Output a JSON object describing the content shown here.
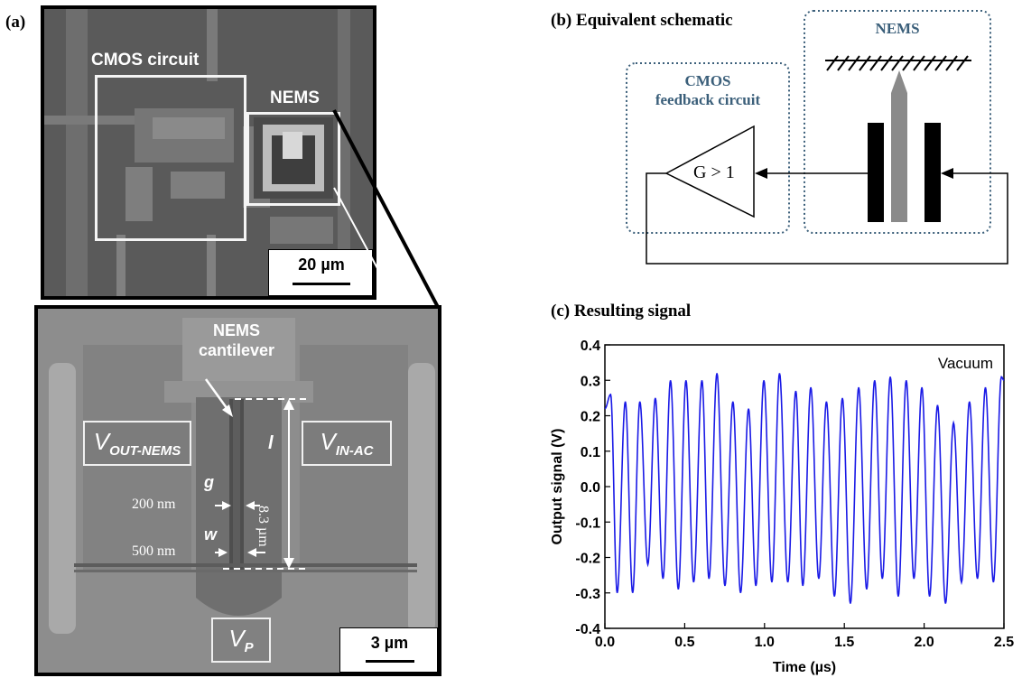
{
  "panel_a": {
    "label": "(a)",
    "top_image": {
      "cmos_label": "CMOS circuit",
      "nems_label": "NEMS",
      "scale_bar": "20 µm"
    },
    "bottom_image": {
      "cantilever_label_line1": "NEMS",
      "cantilever_label_line2": "cantilever",
      "v_out_main": "V",
      "v_out_sub": "OUT-NEMS",
      "v_in_main": "V",
      "v_in_sub": "IN-AC",
      "v_p_main": "V",
      "v_p_sub": "P",
      "g_label": "g",
      "g_value": "200 nm",
      "w_label": "w",
      "w_value": "500 nm",
      "l_label": "l",
      "l_value": "8.3 µm",
      "scale_bar": "3 µm"
    }
  },
  "panel_b": {
    "label": "(b) Equivalent schematic",
    "nems_title": "NEMS",
    "cmos_title_line1": "CMOS",
    "cmos_title_line2": "feedback circuit",
    "gain_label": "G > 1"
  },
  "panel_c": {
    "label": "(c) Resulting signal",
    "colors": {
      "trace": "#1a1ae6"
    },
    "chart_data": {
      "type": "line",
      "xlabel": "Time (µs)",
      "ylabel": "Output signal (V)",
      "xlim": [
        0.0,
        2.5
      ],
      "ylim": [
        -0.4,
        0.4
      ],
      "xticks": [
        "0.0",
        "0.5",
        "1.0",
        "1.5",
        "2.0",
        "2.5"
      ],
      "yticks": [
        "0.4",
        "0.3",
        "0.2",
        "0.1",
        "0.0",
        "-0.1",
        "-0.2",
        "-0.3",
        "-0.4"
      ],
      "annotation": "Vacuum",
      "series": [
        {
          "extrema": [
            [
              0.0,
              0.22
            ],
            [
              0.036,
              0.26
            ],
            [
              0.077,
              -0.3
            ],
            [
              0.128,
              0.24
            ],
            [
              0.174,
              -0.3
            ],
            [
              0.219,
              0.24
            ],
            [
              0.269,
              -0.22
            ],
            [
              0.316,
              0.25
            ],
            [
              0.364,
              -0.26
            ],
            [
              0.411,
              0.3
            ],
            [
              0.46,
              -0.29
            ],
            [
              0.508,
              0.3
            ],
            [
              0.556,
              -0.27
            ],
            [
              0.608,
              0.3
            ],
            [
              0.652,
              -0.26
            ],
            [
              0.702,
              0.32
            ],
            [
              0.752,
              -0.28
            ],
            [
              0.802,
              0.24
            ],
            [
              0.85,
              -0.3
            ],
            [
              0.9,
              0.22
            ],
            [
              0.946,
              -0.28
            ],
            [
              0.996,
              0.3
            ],
            [
              1.046,
              -0.27
            ],
            [
              1.094,
              0.32
            ],
            [
              1.146,
              -0.27
            ],
            [
              1.196,
              0.27
            ],
            [
              1.24,
              -0.28
            ],
            [
              1.29,
              0.28
            ],
            [
              1.34,
              -0.26
            ],
            [
              1.388,
              0.24
            ],
            [
              1.438,
              -0.31
            ],
            [
              1.488,
              0.25
            ],
            [
              1.538,
              -0.33
            ],
            [
              1.59,
              0.28
            ],
            [
              1.64,
              -0.29
            ],
            [
              1.69,
              0.3
            ],
            [
              1.738,
              -0.26
            ],
            [
              1.788,
              0.31
            ],
            [
              1.838,
              -0.31
            ],
            [
              1.888,
              0.3
            ],
            [
              1.936,
              -0.26
            ],
            [
              1.986,
              0.28
            ],
            [
              2.034,
              -0.31
            ],
            [
              2.084,
              0.23
            ],
            [
              2.134,
              -0.33
            ],
            [
              2.184,
              0.18
            ],
            [
              2.234,
              -0.27
            ],
            [
              2.284,
              0.24
            ],
            [
              2.334,
              -0.26
            ],
            [
              2.384,
              0.28
            ],
            [
              2.434,
              -0.27
            ],
            [
              2.484,
              0.31
            ],
            [
              2.5,
              0.3
            ]
          ]
        }
      ]
    }
  }
}
